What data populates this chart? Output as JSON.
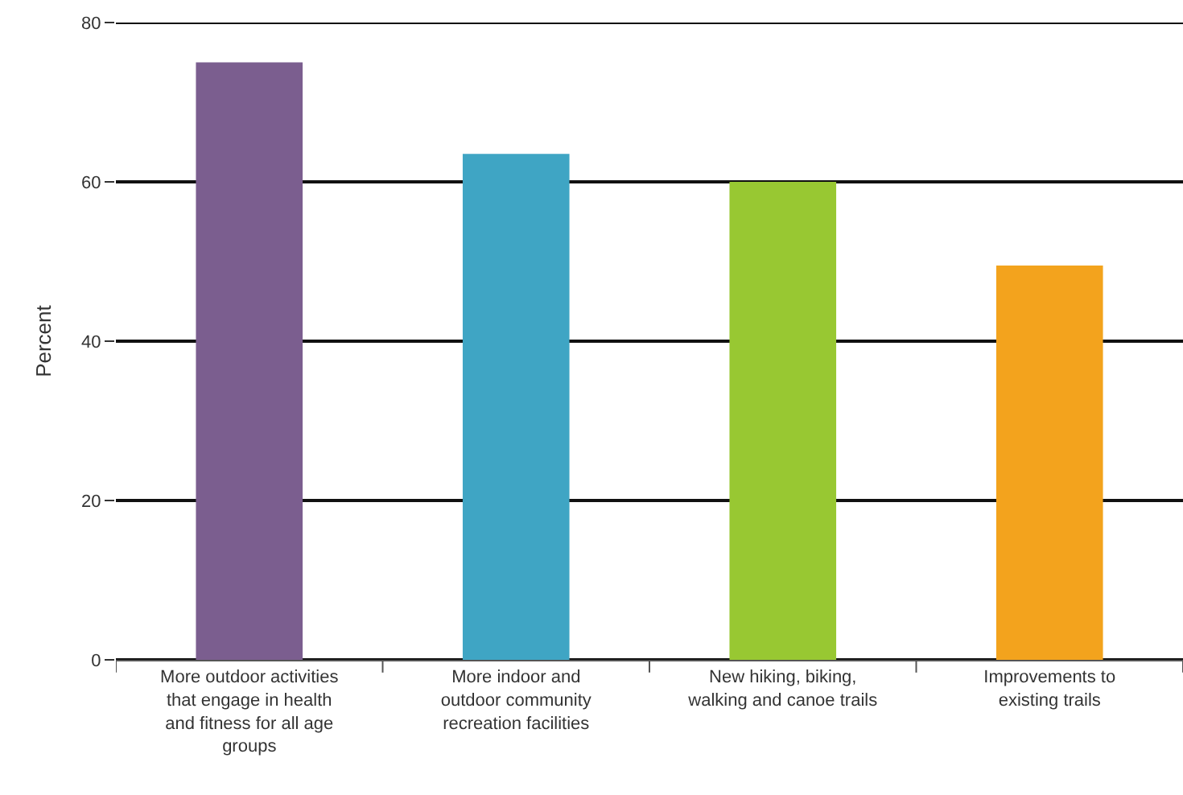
{
  "chart_data": {
    "type": "bar",
    "ylabel": "Percent",
    "categories": [
      "More outdoor activities\nthat engage in health\nand fitness for all age\ngroups",
      "More indoor and\noutdoor community\nrecreation facilities",
      "New hiking, biking,\nwalking and canoe trails",
      "Improvements to\nexisting trails"
    ],
    "values": [
      75,
      63.5,
      60,
      49.5
    ],
    "colors": [
      "#7b5e8f",
      "#3fa5c4",
      "#98c832",
      "#f3a31d"
    ],
    "ylim": [
      0,
      80
    ],
    "yticks": [
      0,
      20,
      40,
      60,
      80
    ],
    "grid": "y"
  }
}
